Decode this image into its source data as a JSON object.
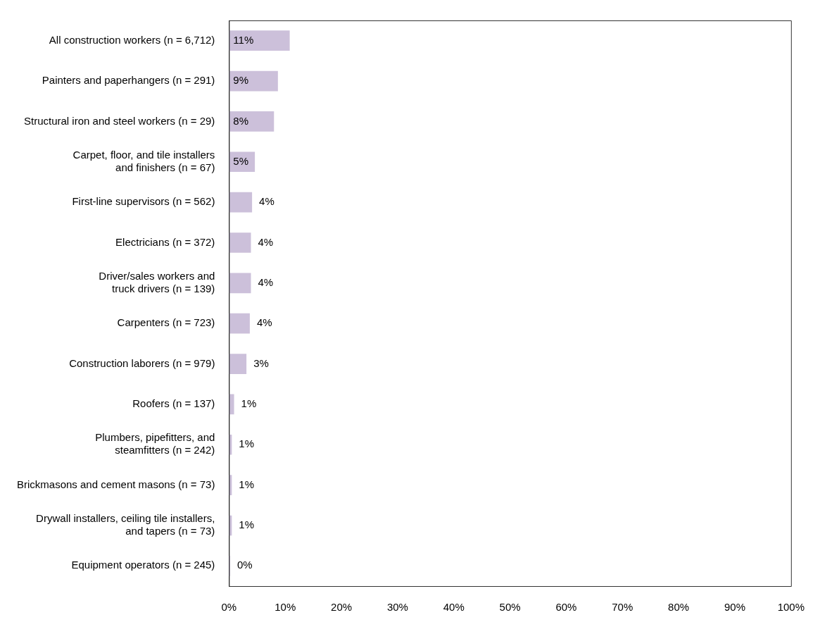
{
  "chart_data": {
    "type": "bar",
    "orientation": "horizontal",
    "categories": [
      "All construction workers (n = 6,712)",
      "Painters and paperhangers (n = 291)",
      "Structural iron and steel workers (n = 29)",
      "Carpet, floor, and tile installers\nand finishers (n = 67)",
      "First-line supervisors (n = 562)",
      "Electricians (n = 372)",
      "Driver/sales workers and\ntruck drivers (n = 139)",
      "Carpenters (n = 723)",
      "Construction laborers (n = 979)",
      "Roofers (n = 137)",
      "Plumbers, pipefitters, and\nsteamfitters (n = 242)",
      "Brickmasons and cement masons (n = 73)",
      "Drywall installers, ceiling tile installers,\nand tapers (n = 73)",
      "Equipment operators (n = 245)"
    ],
    "values": [
      10.8,
      8.7,
      8.0,
      4.6,
      4.1,
      3.9,
      3.9,
      3.7,
      3.1,
      0.9,
      0.5,
      0.5,
      0.5,
      0.2
    ],
    "value_labels": [
      "11%",
      "9%",
      "8%",
      "5%",
      "4%",
      "4%",
      "4%",
      "4%",
      "3%",
      "1%",
      "1%",
      "1%",
      "1%",
      "0%"
    ],
    "color": "#ccc0da",
    "xlim": [
      0,
      100
    ],
    "xticks": [
      {
        "value": 0,
        "label": "0%"
      },
      {
        "value": 10,
        "label": "10%"
      },
      {
        "value": 20,
        "label": "20%"
      },
      {
        "value": 30,
        "label": "30%"
      },
      {
        "value": 40,
        "label": "40%"
      },
      {
        "value": 50,
        "label": "50%"
      },
      {
        "value": 60,
        "label": "60%"
      },
      {
        "value": 70,
        "label": "70%"
      },
      {
        "value": 80,
        "label": "80%"
      },
      {
        "value": 90,
        "label": "90%"
      },
      {
        "value": 100,
        "label": "100%"
      }
    ],
    "grid": false,
    "legend": false
  }
}
